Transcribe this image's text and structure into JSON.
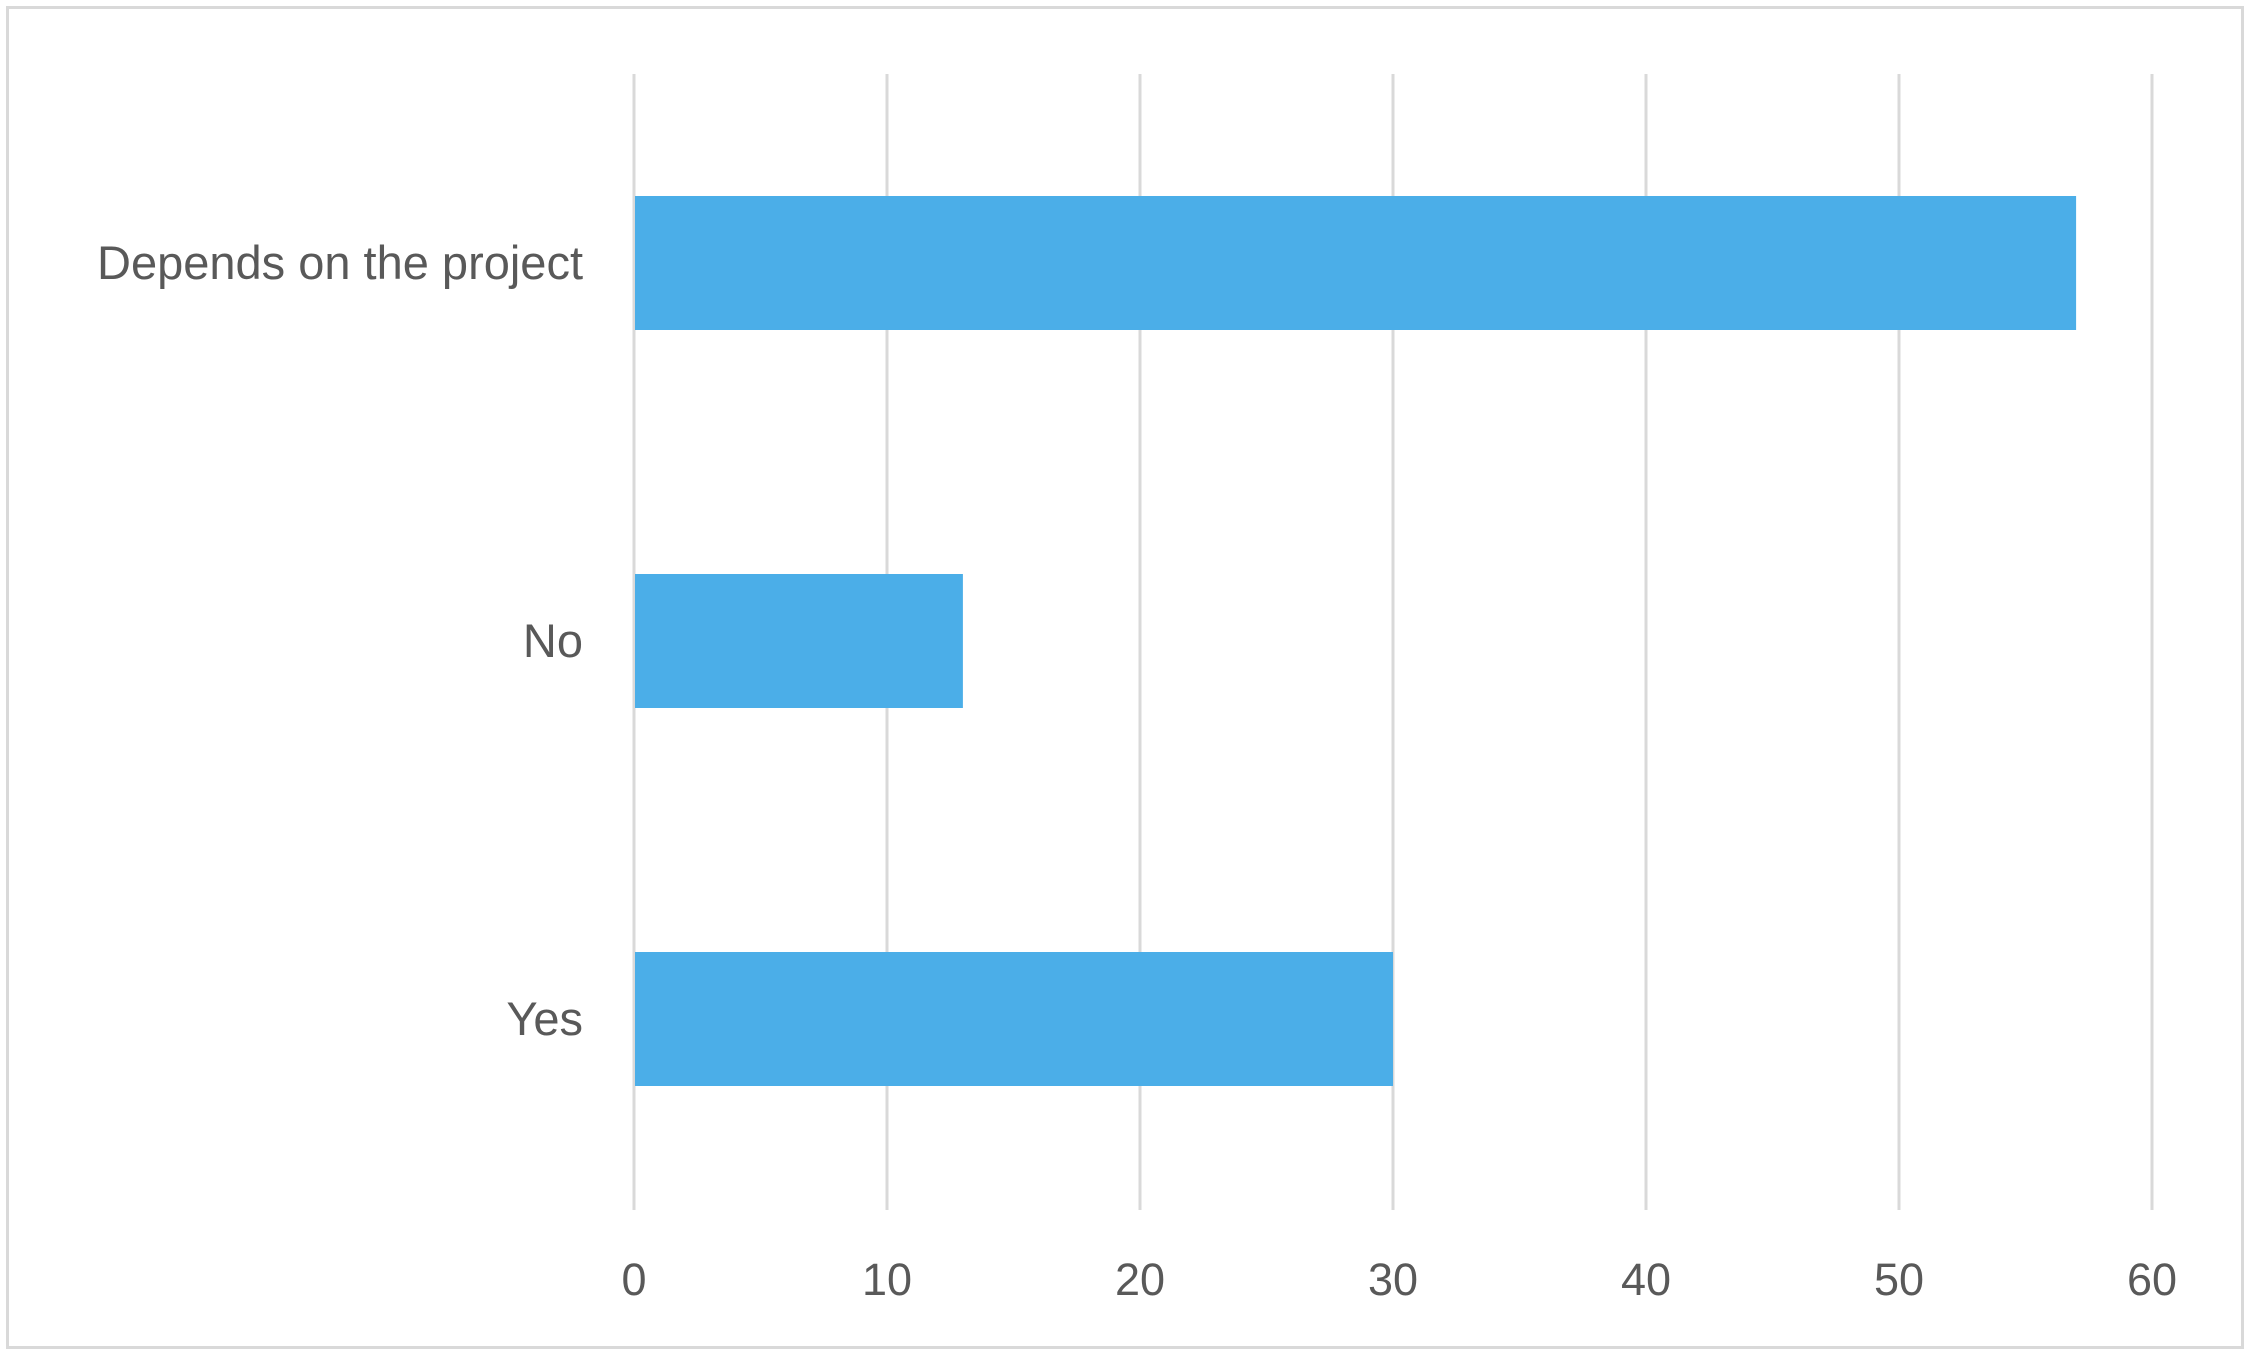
{
  "chart_data": {
    "type": "bar",
    "orientation": "horizontal",
    "categories": [
      "Depends on the project",
      "No",
      "Yes"
    ],
    "values": [
      57,
      13,
      30
    ],
    "title": "",
    "xlabel": "",
    "ylabel": "",
    "xlim": [
      0,
      60
    ],
    "x_ticks": [
      "0",
      "10",
      "20",
      "30",
      "40",
      "50",
      "60"
    ],
    "grid": true,
    "legend": "none",
    "bar_color": "#4baee8",
    "grid_color": "#d9d9d9",
    "text_color": "#595959"
  }
}
